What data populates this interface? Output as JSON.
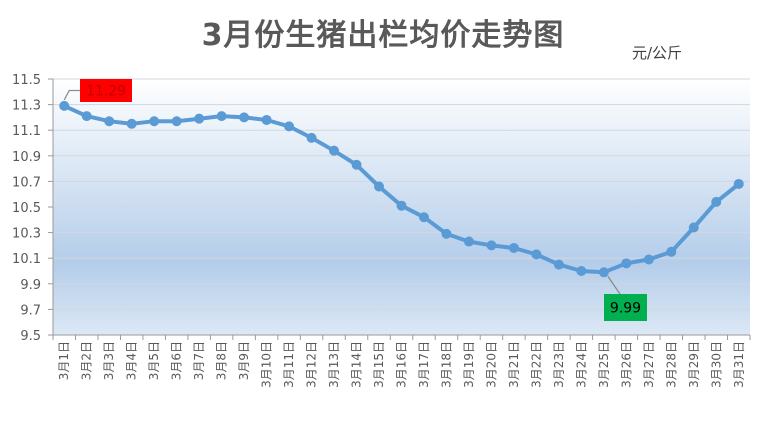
{
  "chart_data": {
    "type": "line",
    "title": "3月份生猪出栏均价走势图",
    "unit": "元/公斤",
    "categories": [
      "3月1日",
      "3月2日",
      "3月3日",
      "3月4日",
      "3月5日",
      "3月6日",
      "3月7日",
      "3月8日",
      "3月9日",
      "3月10日",
      "3月11日",
      "3月12日",
      "3月13日",
      "3月14日",
      "3月15日",
      "3月16日",
      "3月17日",
      "3月18日",
      "3月19日",
      "3月20日",
      "3月21日",
      "3月22日",
      "3月23日",
      "3月24日",
      "3月25日",
      "3月26日",
      "3月27日",
      "3月28日",
      "3月29日",
      "3月30日",
      "3月31日"
    ],
    "series": [
      {
        "values": [
          11.29,
          11.21,
          11.17,
          11.15,
          11.17,
          11.17,
          11.19,
          11.21,
          11.2,
          11.18,
          11.13,
          11.04,
          10.94,
          10.83,
          10.66,
          10.51,
          10.42,
          10.29,
          10.23,
          10.2,
          10.18,
          10.13,
          10.05,
          10.0,
          9.99,
          10.06,
          10.09,
          10.15,
          10.34,
          10.54,
          10.68
        ],
        "color": "#5b9bd5"
      }
    ],
    "ylim": [
      9.5,
      11.5
    ],
    "yticks": [
      "9.5",
      "9.7",
      "9.9",
      "10.1",
      "10.3",
      "10.5",
      "10.7",
      "10.9",
      "11.1",
      "11.3",
      "11.5"
    ],
    "grid": true,
    "annotations": [
      {
        "label": "11.29",
        "index": 0,
        "bg": "#ff0000",
        "fg": "#c00000"
      },
      {
        "label": "9.99",
        "index": 24,
        "bg": "#00b050",
        "fg": "#000000"
      }
    ]
  }
}
